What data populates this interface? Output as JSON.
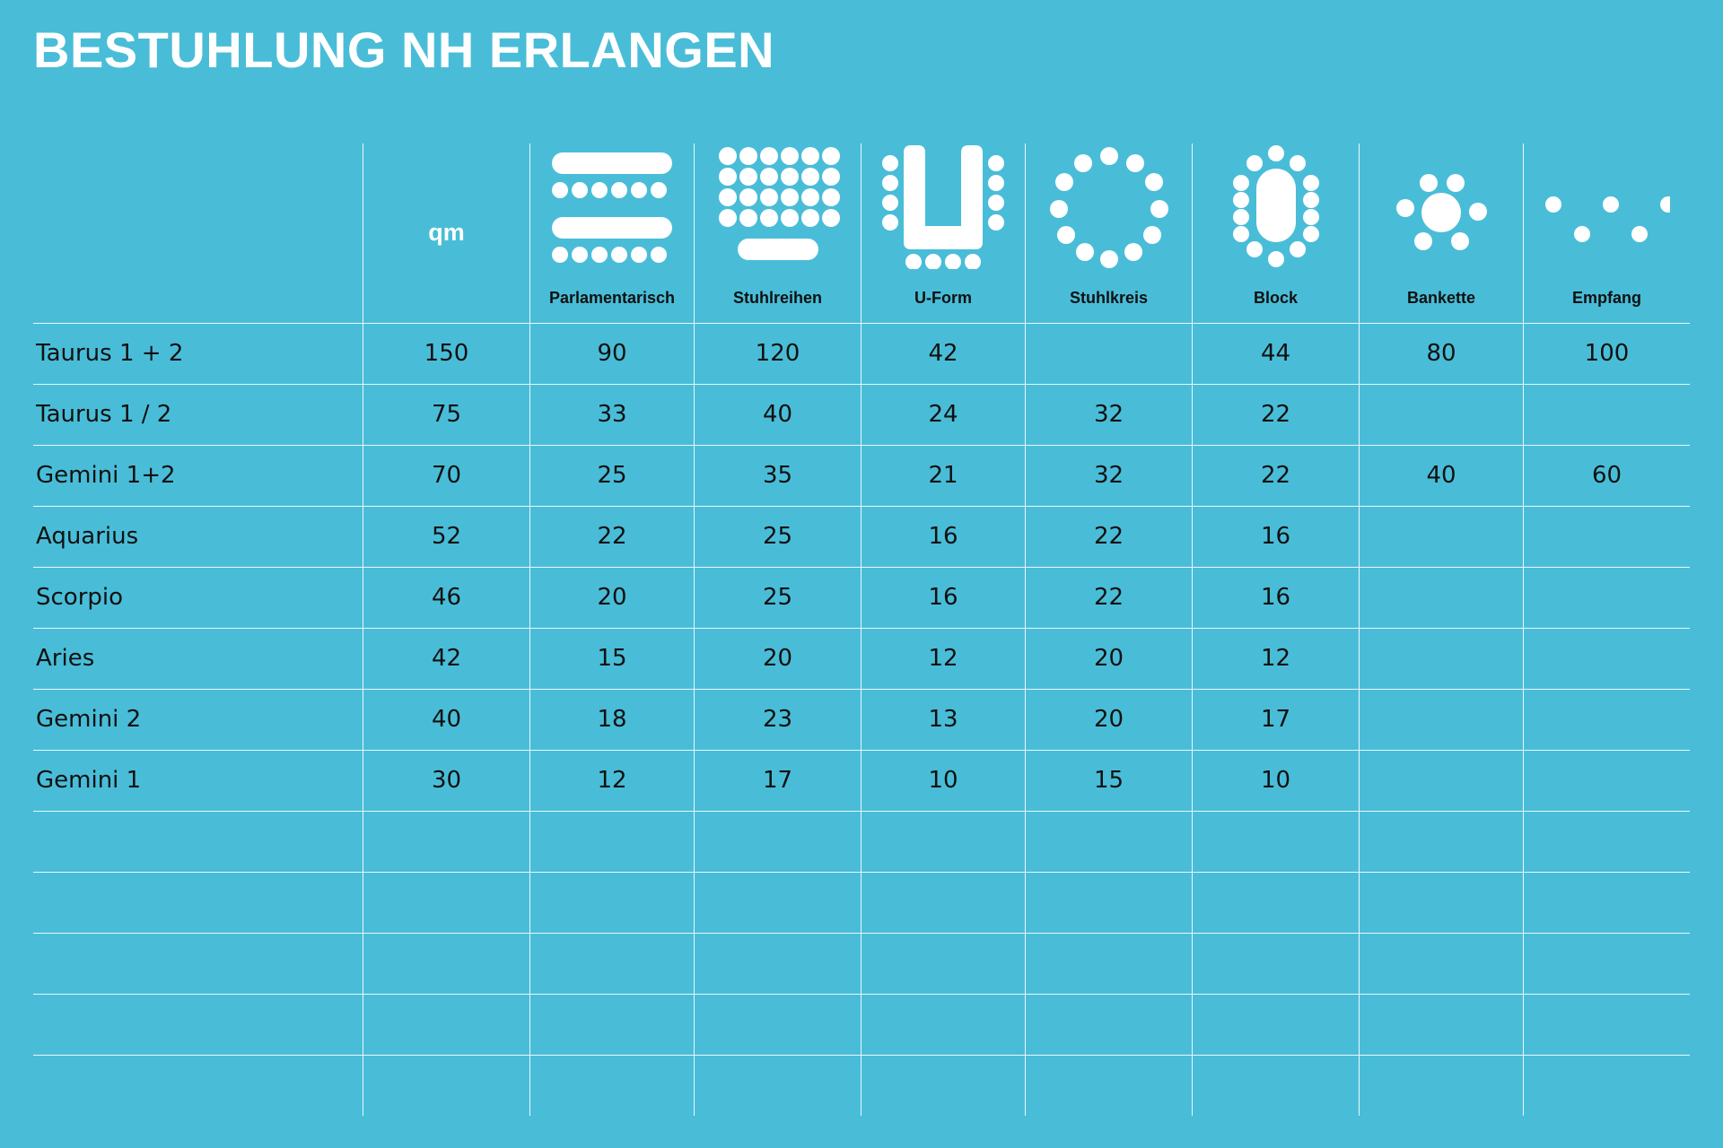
{
  "title": "BESTUHLUNG NH ERLANGEN",
  "colors": {
    "background": "#49bdd8",
    "lines": "#e9f7fb",
    "text": "#111111",
    "icons": "#ffffff"
  },
  "header": {
    "qm": "qm",
    "columns": [
      {
        "label": "Parlamentarisch",
        "icon": "parliament-seating-icon"
      },
      {
        "label": "Stuhlreihen",
        "icon": "chair-rows-icon"
      },
      {
        "label": "U-Form",
        "icon": "u-shape-icon"
      },
      {
        "label": "Stuhlkreis",
        "icon": "chair-circle-icon"
      },
      {
        "label": "Block",
        "icon": "block-table-icon"
      },
      {
        "label": "Bankette",
        "icon": "banquet-icon"
      },
      {
        "label": "Empfang",
        "icon": "reception-icon"
      }
    ]
  },
  "rows": [
    {
      "room": "Taurus 1 + 2",
      "qm": "150",
      "values": [
        "90",
        "120",
        "42",
        "",
        "44",
        "80",
        "100"
      ]
    },
    {
      "room": "Taurus 1 / 2",
      "qm": "75",
      "values": [
        "33",
        "40",
        "24",
        "32",
        "22",
        "",
        ""
      ]
    },
    {
      "room": "Gemini 1+2",
      "qm": "70",
      "values": [
        "25",
        "35",
        "21",
        "32",
        "22",
        "40",
        "60"
      ]
    },
    {
      "room": "Aquarius",
      "qm": "52",
      "values": [
        "22",
        "25",
        "16",
        "22",
        "16",
        "",
        ""
      ]
    },
    {
      "room": "Scorpio",
      "qm": "46",
      "values": [
        "20",
        "25",
        "16",
        "22",
        "16",
        "",
        ""
      ]
    },
    {
      "room": "Aries",
      "qm": "42",
      "values": [
        "15",
        "20",
        "12",
        "20",
        "12",
        "",
        ""
      ]
    },
    {
      "room": "Gemini 2",
      "qm": "40",
      "values": [
        "18",
        "23",
        "13",
        "20",
        "17",
        "",
        ""
      ]
    },
    {
      "room": "Gemini 1",
      "qm": "30",
      "values": [
        "12",
        "17",
        "10",
        "15",
        "10",
        "",
        ""
      ]
    }
  ]
}
